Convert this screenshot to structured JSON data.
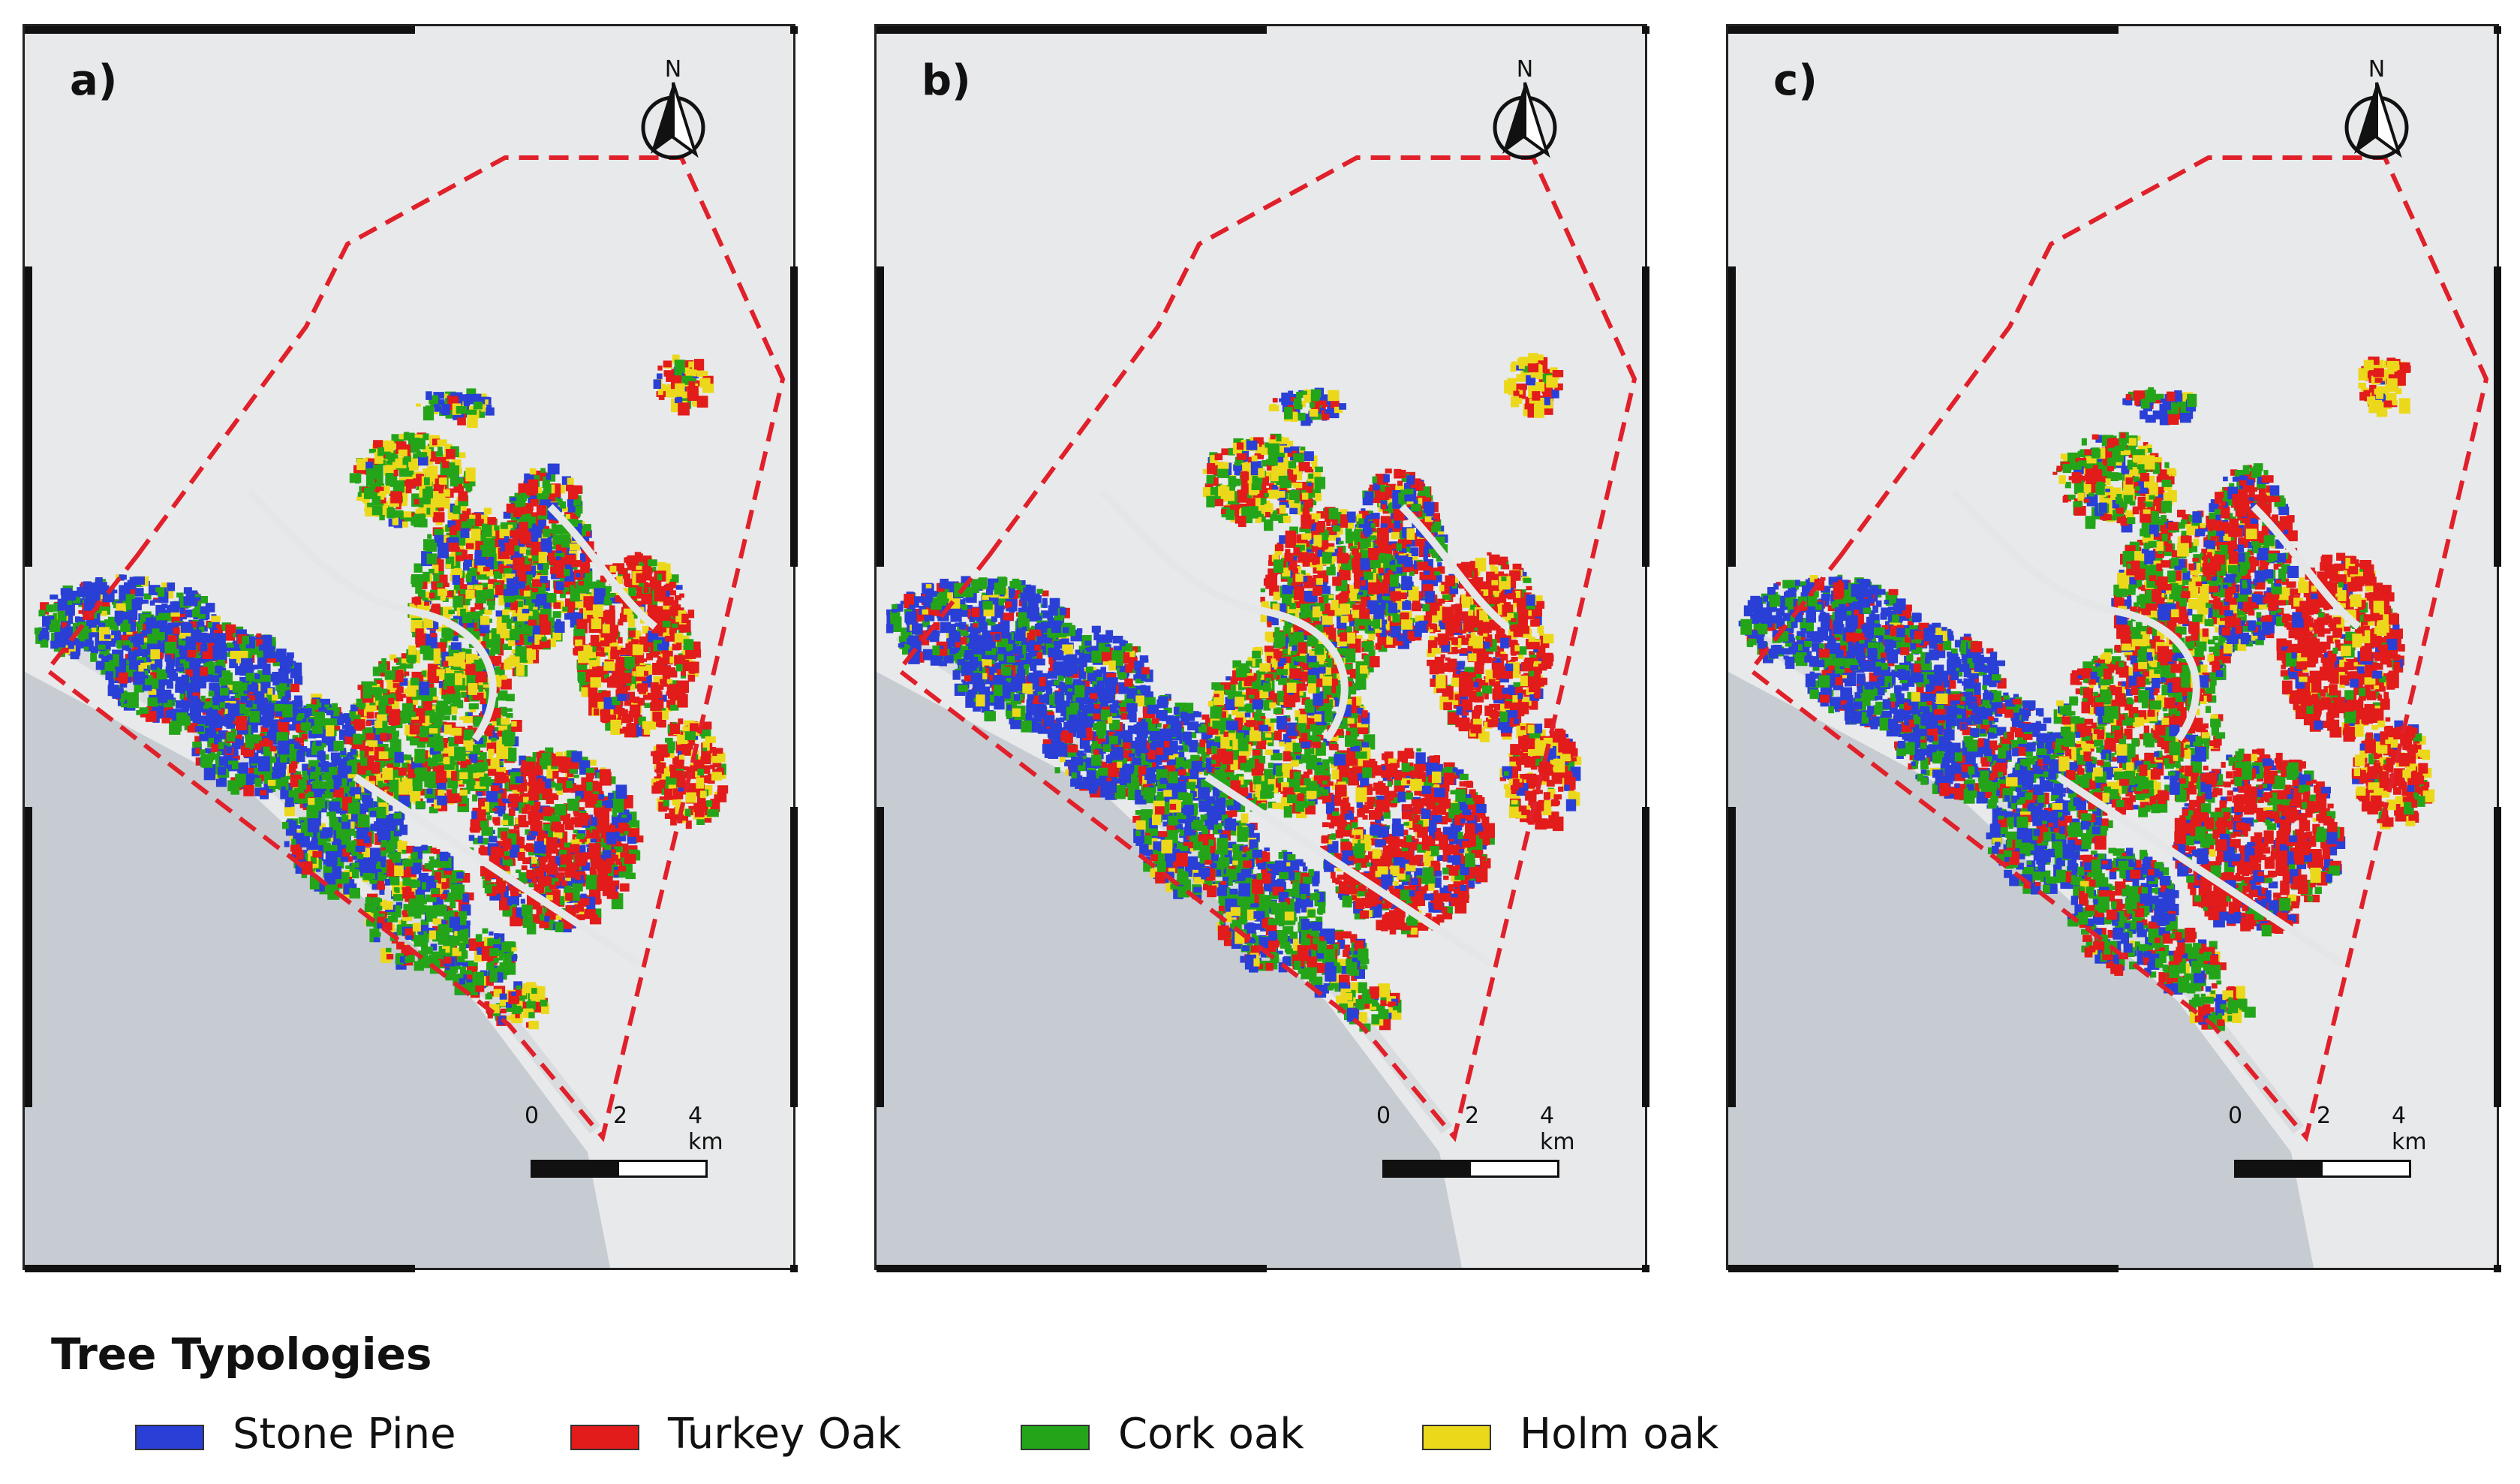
{
  "panels": [
    {
      "label": "a)",
      "north": "N",
      "scale_ticks": [
        "0",
        "2",
        "4 km"
      ],
      "variant": "a"
    },
    {
      "label": "b)",
      "north": "N",
      "scale_ticks": [
        "0",
        "2",
        "4 km"
      ],
      "variant": "b"
    },
    {
      "label": "c)",
      "north": "N",
      "scale_ticks": [
        "0",
        "2",
        "4 km"
      ],
      "variant": "c"
    }
  ],
  "legend": {
    "title": "Tree Typologies",
    "items": [
      {
        "label": "Stone Pine",
        "color": "#2a3fd6"
      },
      {
        "label": "Turkey Oak",
        "color": "#e21b1b"
      },
      {
        "label": "Cork oak",
        "color": "#24a519"
      },
      {
        "label": "Holm oak",
        "color": "#ecd81a"
      }
    ]
  },
  "colors": {
    "boundary": "#e0202a",
    "sea": "#c6ccd2",
    "land": "#e9eaea",
    "frame": "#111111"
  }
}
